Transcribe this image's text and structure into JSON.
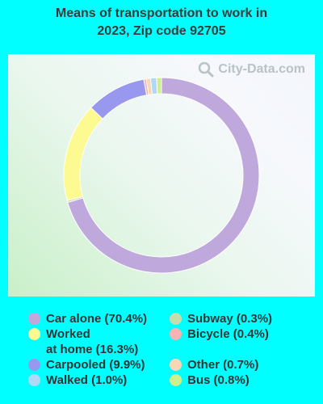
{
  "title": {
    "line1": "Means of transportation to work in",
    "line2": "2023, Zip code 92705"
  },
  "watermark": {
    "text": "City-Data.com",
    "icon": "magnifier-icon"
  },
  "chart_data": {
    "type": "pie",
    "subtype": "donut",
    "categories": [
      "Car alone",
      "Worked at home",
      "Carpooled",
      "Walked",
      "Subway",
      "Bicycle",
      "Other",
      "Bus"
    ],
    "values": [
      70.4,
      16.3,
      9.9,
      1.0,
      0.3,
      0.4,
      0.7,
      0.8
    ],
    "draw_order": [
      "Car alone",
      "Subway",
      "Worked at home",
      "Carpooled",
      "Bicycle",
      "Other",
      "Walked",
      "Bus"
    ],
    "colors": {
      "Car alone": "#bfa8dc",
      "Worked at home": "#fdfa91",
      "Carpooled": "#9898ef",
      "Walked": "#afd9f6",
      "Subway": "#c5dcaf",
      "Bicycle": "#f5b3b3",
      "Other": "#f8d7b5",
      "Bus": "#cdf08c"
    }
  },
  "legend": {
    "items": [
      {
        "lines": [
          "Car alone (70.4%)"
        ],
        "color": "#bfa8dc"
      },
      {
        "lines": [
          "Worked",
          "at home (16.3%)"
        ],
        "color": "#fdfa91"
      },
      {
        "lines": [
          "Carpooled (9.9%)"
        ],
        "color": "#9898ef"
      },
      {
        "lines": [
          "Walked (1.0%)"
        ],
        "color": "#afd9f6"
      },
      {
        "lines": [
          "Subway (0.3%)"
        ],
        "color": "#c5dcaf"
      },
      {
        "lines": [
          "Bicycle (0.4%)"
        ],
        "color": "#f5b3b3"
      },
      {
        "lines": [
          "Other (0.7%)"
        ],
        "color": "#f8d7b5"
      },
      {
        "lines": [
          "Bus (0.8%)"
        ],
        "color": "#cdf08c"
      }
    ]
  }
}
